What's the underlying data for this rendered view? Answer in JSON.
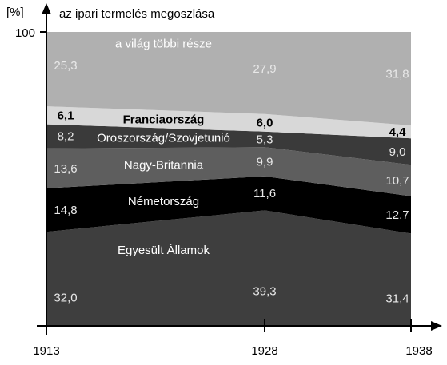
{
  "chart_data": {
    "type": "area",
    "stacked": true,
    "normalized": true,
    "title": "az ipari termelés megoszlása",
    "y_unit": "[%]",
    "y_tick_labels": [
      "100"
    ],
    "ylim": [
      0,
      100
    ],
    "x": [
      "1913",
      "1928",
      "1938"
    ],
    "series": [
      {
        "name": "Egyesült Államok",
        "values": [
          32.0,
          39.3,
          31.4
        ],
        "labels": [
          "32,0",
          "39,3",
          "31,4"
        ],
        "color": "#3e3e3e"
      },
      {
        "name": "Németország",
        "values": [
          14.8,
          11.6,
          12.7
        ],
        "labels": [
          "14,8",
          "11,6",
          "12,7"
        ],
        "color": "#000000"
      },
      {
        "name": "Nagy-Britannia",
        "values": [
          13.6,
          9.9,
          10.7
        ],
        "labels": [
          "13,6",
          "9,9",
          "10,7"
        ],
        "color": "#5e5e5e"
      },
      {
        "name": "Oroszország/Szovjetunió",
        "values": [
          8.2,
          5.3,
          9.0
        ],
        "labels": [
          "8,2",
          "5,3",
          "9,0"
        ],
        "color": "#3a3a3a"
      },
      {
        "name": "Franciaország",
        "values": [
          6.1,
          6.0,
          4.4
        ],
        "labels": [
          "6,1",
          "6,0",
          "4,4"
        ],
        "color": "#d8d8d8"
      },
      {
        "name": "a világ többi része",
        "values": [
          25.3,
          27.9,
          31.8
        ],
        "labels": [
          "25,3",
          "27,9",
          "31,8"
        ],
        "color": "#b0b0b0"
      }
    ]
  }
}
